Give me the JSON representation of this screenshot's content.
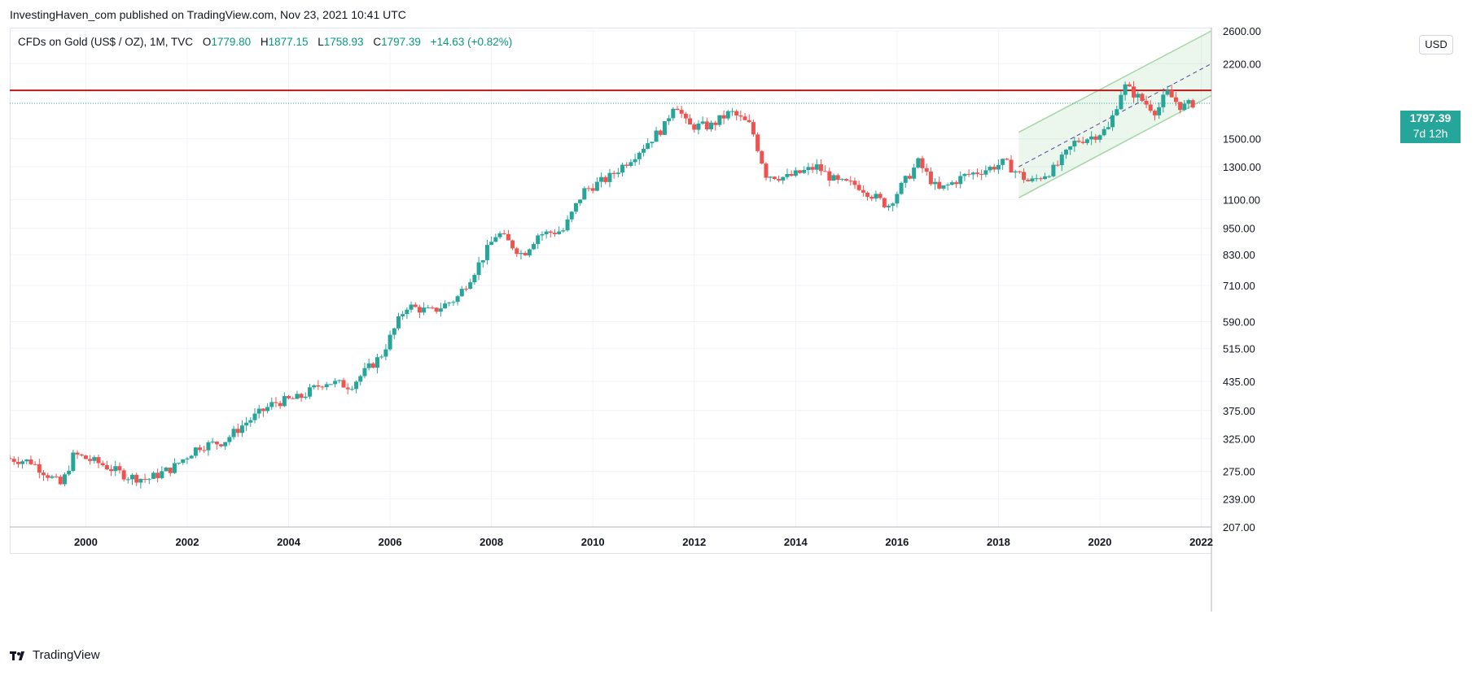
{
  "header": {
    "publish_line": "InvestingHaven_com published on TradingView.com, Nov 23, 2021 10:41 UTC"
  },
  "legend": {
    "title": "CFDs on Gold (US$ / OZ), 1M, TVC",
    "open_label": "O",
    "open": "1779.80",
    "high_label": "H",
    "high": "1877.15",
    "low_label": "L",
    "low": "1758.93",
    "close_label": "C",
    "close": "1797.39",
    "change": "+14.63 (+0.82%)"
  },
  "currency": "USD",
  "price_tag": {
    "price": "1797.39",
    "countdown": "7d 12h"
  },
  "footer": {
    "brand": "TradingView",
    "logo_icon": "tradingview-logo-icon"
  },
  "colors": {
    "up": "#26a69a",
    "down": "#ef5350",
    "resistance": "#b71c1c",
    "channel": "#a5d6a7",
    "grid": "#f0f3fa"
  },
  "chart_data": {
    "type": "candlestick",
    "interval": "1M",
    "y_scale": "log",
    "ylim": [
      207,
      2600
    ],
    "xlim": [
      1998.5,
      2022.2
    ],
    "y_ticks": [
      2600,
      2200,
      1500,
      1300,
      1100,
      950,
      830,
      710,
      590,
      515,
      435,
      375,
      325,
      275,
      239,
      207
    ],
    "y_tick_labels": [
      "2600.00",
      "2200.00",
      "1500.00",
      "1300.00",
      "1100.00",
      "950.00",
      "830.00",
      "710.00",
      "590.00",
      "515.00",
      "435.00",
      "375.00",
      "325.00",
      "275.00",
      "239.00",
      "207.00"
    ],
    "x_ticks": [
      2000,
      2002,
      2004,
      2006,
      2008,
      2010,
      2012,
      2014,
      2016,
      2018,
      2020,
      2022
    ],
    "x_tick_labels": [
      "2000",
      "2002",
      "2004",
      "2006",
      "2008",
      "2010",
      "2012",
      "2014",
      "2016",
      "2018",
      "2020",
      "2022"
    ],
    "resistance_level": 1920,
    "last_price": 1797.39,
    "channel": {
      "start": "2018.4",
      "end": "2022.2",
      "mid_start": 1300,
      "mid_end": 2200,
      "upper_start": 1550,
      "upper_end": 2600,
      "lower_start": 1110,
      "lower_end": 1870
    },
    "price_path": [
      [
        1998.5,
        294
      ],
      [
        1999.0,
        289
      ],
      [
        1999.6,
        256
      ],
      [
        1999.85,
        300
      ],
      [
        2000.4,
        285
      ],
      [
        2000.9,
        268
      ],
      [
        2001.3,
        264
      ],
      [
        2001.8,
        280
      ],
      [
        2002.3,
        312
      ],
      [
        2002.8,
        320
      ],
      [
        2003.2,
        350
      ],
      [
        2003.8,
        390
      ],
      [
        2004.3,
        400
      ],
      [
        2004.8,
        435
      ],
      [
        2005.3,
        425
      ],
      [
        2005.9,
        495
      ],
      [
        2006.4,
        640
      ],
      [
        2006.9,
        620
      ],
      [
        2007.4,
        665
      ],
      [
        2007.8,
        780
      ],
      [
        2008.2,
        930
      ],
      [
        2008.7,
        830
      ],
      [
        2009.0,
        920
      ],
      [
        2009.5,
        940
      ],
      [
        2009.9,
        1150
      ],
      [
        2010.4,
        1230
      ],
      [
        2010.9,
        1380
      ],
      [
        2011.5,
        1600
      ],
      [
        2011.7,
        1820
      ],
      [
        2011.95,
        1600
      ],
      [
        2012.4,
        1600
      ],
      [
        2012.8,
        1720
      ],
      [
        2013.2,
        1600
      ],
      [
        2013.5,
        1250
      ],
      [
        2013.9,
        1230
      ],
      [
        2014.5,
        1300
      ],
      [
        2014.9,
        1200
      ],
      [
        2015.3,
        1185
      ],
      [
        2015.9,
        1065
      ],
      [
        2016.5,
        1330
      ],
      [
        2016.9,
        1150
      ],
      [
        2017.4,
        1240
      ],
      [
        2017.9,
        1290
      ],
      [
        2018.2,
        1330
      ],
      [
        2018.7,
        1200
      ],
      [
        2019.2,
        1290
      ],
      [
        2019.6,
        1480
      ],
      [
        2019.95,
        1520
      ],
      [
        2020.25,
        1580
      ],
      [
        2020.55,
        1970
      ],
      [
        2020.9,
        1830
      ],
      [
        2021.2,
        1720
      ],
      [
        2021.4,
        1900
      ],
      [
        2021.7,
        1760
      ],
      [
        2021.9,
        1797.39
      ]
    ]
  }
}
